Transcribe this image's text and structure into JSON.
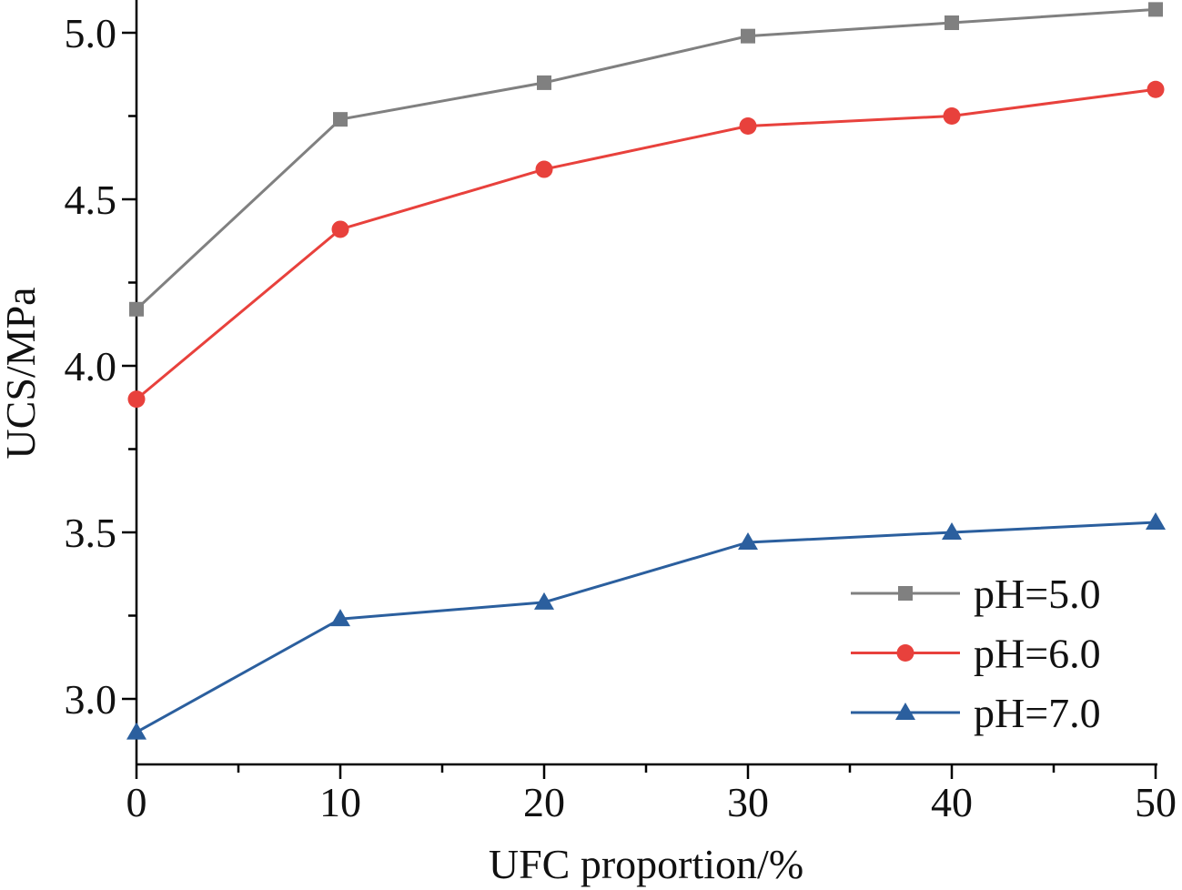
{
  "chart_data": {
    "type": "line",
    "title": "",
    "xlabel": "UFC proportion/%",
    "ylabel": "UCS/MPa",
    "xlim": [
      0,
      50
    ],
    "ylim": [
      2.8,
      5.1
    ],
    "x_ticks": [
      "0",
      "10",
      "20",
      "30",
      "40",
      "50"
    ],
    "y_ticks": [
      "3.0",
      "3.5",
      "4.0",
      "4.5",
      "5.0"
    ],
    "grid": false,
    "legend_position": "bottom-right",
    "x": [
      0,
      10,
      20,
      30,
      40,
      50
    ],
    "series": [
      {
        "name": "pH=5.0",
        "marker": "square",
        "color": "#808080",
        "values": [
          4.17,
          4.74,
          4.85,
          4.99,
          5.03,
          5.07
        ]
      },
      {
        "name": "pH=6.0",
        "marker": "circle",
        "color": "#e8413c",
        "values": [
          3.9,
          4.41,
          4.59,
          4.72,
          4.75,
          4.83
        ]
      },
      {
        "name": "pH=7.0",
        "marker": "triangle",
        "color": "#2b5f9e",
        "values": [
          2.9,
          3.24,
          3.29,
          3.47,
          3.5,
          3.53
        ]
      }
    ]
  }
}
